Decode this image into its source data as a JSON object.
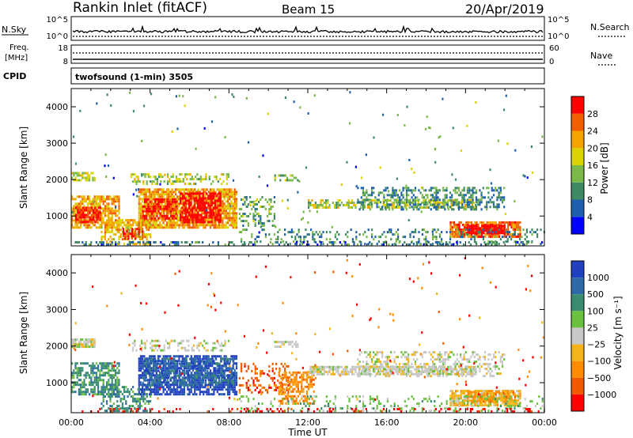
{
  "header": {
    "site": "Rankin Inlet (fitACF)",
    "beam": "Beam 15",
    "date": "20/Apr/2019"
  },
  "top_panels": {
    "nsky_label": "N.Sky",
    "nsky_top": "10^5",
    "nsky_bottom": "10^0",
    "nsearch_label": "N.Search",
    "nsearch_top": "10^5",
    "nsearch_bottom": "10^0",
    "freq_label_1": "Freq.",
    "freq_label_2": "[MHz]",
    "freq_top": "18",
    "freq_bottom": "8",
    "nave_label": "Nave",
    "nave_top": "60",
    "nave_bottom": "0",
    "cpid_label": "CPID",
    "cpid_text": "twofsound (1-min) 3505"
  },
  "colors": {
    "power_scale": [
      "#0000ff",
      "#1f5fb0",
      "#3f8a64",
      "#7ab84a",
      "#dcd200",
      "#f5a300",
      "#f06000",
      "#ff0000"
    ],
    "velocity_scale": [
      "#2040c0",
      "#2f6aa8",
      "#3a8c70",
      "#6cc040",
      "#c8c8c8",
      "#f2b418",
      "#ff8c00",
      "#f25a00",
      "#ff0000"
    ]
  },
  "chart_data": [
    {
      "type": "heatmap",
      "title": "twofsound (1-min) 3505",
      "variable": "Power",
      "xlabel": "Time UT",
      "ylabel": "Slant Range [km]",
      "x_ticks": [
        "00:00",
        "04:00",
        "08:00",
        "12:00",
        "16:00",
        "20:00",
        "00:00"
      ],
      "xlim_hours": [
        0,
        24
      ],
      "y_ticks": [
        1000,
        2000,
        3000,
        4000
      ],
      "ylim": [
        180,
        4500
      ],
      "colorbar": {
        "label": "Power [dB]",
        "ticks": [
          4,
          8,
          12,
          16,
          20,
          24,
          28
        ],
        "range": [
          0,
          32
        ]
      },
      "regions": [
        {
          "t0": 0.0,
          "t1": 2.4,
          "r0": 650,
          "r1": 1550,
          "value": 20,
          "density": 0.75
        },
        {
          "t0": 0.2,
          "t1": 1.5,
          "r0": 800,
          "r1": 1200,
          "value": 28,
          "density": 0.8
        },
        {
          "t0": 1.5,
          "t1": 4.0,
          "r0": 200,
          "r1": 900,
          "value": 18,
          "density": 0.55
        },
        {
          "t0": 2.6,
          "t1": 3.6,
          "r0": 350,
          "r1": 650,
          "value": 26,
          "density": 0.7
        },
        {
          "t0": 3.4,
          "t1": 8.4,
          "r0": 650,
          "r1": 1750,
          "value": 20,
          "density": 0.85
        },
        {
          "t0": 3.6,
          "t1": 5.3,
          "r0": 900,
          "r1": 1450,
          "value": 28,
          "density": 0.7
        },
        {
          "t0": 5.5,
          "t1": 7.6,
          "r0": 800,
          "r1": 1600,
          "value": 30,
          "density": 0.75
        },
        {
          "t0": 0.0,
          "t1": 1.2,
          "r0": 1950,
          "r1": 2150,
          "value": 14,
          "density": 0.6
        },
        {
          "t0": 3.0,
          "t1": 8.0,
          "r0": 1850,
          "r1": 2150,
          "value": 14,
          "density": 0.4
        },
        {
          "t0": 8.5,
          "t1": 10.3,
          "r0": 700,
          "r1": 1500,
          "value": 10,
          "density": 0.35
        },
        {
          "t0": 10.3,
          "t1": 11.5,
          "r0": 1950,
          "r1": 2100,
          "value": 10,
          "density": 0.5
        },
        {
          "t0": 12.0,
          "t1": 20.5,
          "r0": 1200,
          "r1": 1450,
          "value": 14,
          "density": 0.55
        },
        {
          "t0": 14.5,
          "t1": 22.0,
          "r0": 1150,
          "r1": 1800,
          "value": 8,
          "density": 0.4
        },
        {
          "t0": 19.2,
          "t1": 22.8,
          "r0": 400,
          "r1": 800,
          "value": 24,
          "density": 0.8
        },
        {
          "t0": 20.0,
          "t1": 22.0,
          "r0": 500,
          "r1": 700,
          "value": 30,
          "density": 0.85
        },
        {
          "t0": 8.5,
          "t1": 24.0,
          "r0": 200,
          "r1": 650,
          "value": 8,
          "density": 0.22
        },
        {
          "t0": 0.0,
          "t1": 24.0,
          "r0": 180,
          "r1": 280,
          "value": 6,
          "density": 0.3
        }
      ]
    },
    {
      "type": "heatmap",
      "variable": "Velocity",
      "xlabel": "Time UT",
      "ylabel": "Slant Range [km]",
      "x_ticks": [
        "00:00",
        "04:00",
        "08:00",
        "12:00",
        "16:00",
        "20:00",
        "00:00"
      ],
      "xlim_hours": [
        0,
        24
      ],
      "y_ticks": [
        1000,
        2000,
        3000,
        4000
      ],
      "ylim": [
        180,
        4500
      ],
      "colorbar": {
        "label": "Velocity [m s⁻¹]",
        "ticks": [
          "1000",
          "500",
          "100",
          "25",
          "−25",
          "−100",
          "−500",
          "−1000"
        ]
      },
      "regions": [
        {
          "t0": 0.0,
          "t1": 2.4,
          "r0": 650,
          "r1": 1550,
          "value": 2,
          "density": 0.6
        },
        {
          "t0": 1.5,
          "t1": 4.0,
          "r0": 200,
          "r1": 900,
          "value": 2,
          "density": 0.5
        },
        {
          "t0": 3.4,
          "t1": 8.4,
          "r0": 650,
          "r1": 1750,
          "value": 0,
          "density": 0.7
        },
        {
          "t0": 3.6,
          "t1": 8.2,
          "r0": 900,
          "r1": 1650,
          "value": 1,
          "density": 0.6
        },
        {
          "t0": 0.0,
          "t1": 1.2,
          "r0": 1950,
          "r1": 2150,
          "value": 4,
          "density": 0.85
        },
        {
          "t0": 3.0,
          "t1": 8.0,
          "r0": 1850,
          "r1": 2150,
          "value": 4,
          "density": 0.35
        },
        {
          "t0": 10.3,
          "t1": 11.5,
          "r0": 1950,
          "r1": 2100,
          "value": 4,
          "density": 0.6
        },
        {
          "t0": 8.5,
          "t1": 11.0,
          "r0": 700,
          "r1": 1500,
          "value": 7,
          "density": 0.3
        },
        {
          "t0": 10.5,
          "t1": 12.3,
          "r0": 400,
          "r1": 1300,
          "value": 6,
          "density": 0.55
        },
        {
          "t0": 12.0,
          "t1": 20.5,
          "r0": 1200,
          "r1": 1450,
          "value": 4,
          "density": 0.75
        },
        {
          "t0": 14.5,
          "t1": 22.0,
          "r0": 1150,
          "r1": 1800,
          "value": 4,
          "density": 0.35
        },
        {
          "t0": 19.2,
          "t1": 22.8,
          "r0": 350,
          "r1": 800,
          "value": 5,
          "density": 0.8
        },
        {
          "t0": 20.0,
          "t1": 22.5,
          "r0": 450,
          "r1": 750,
          "value": 6,
          "density": 0.55
        },
        {
          "t0": 8.5,
          "t1": 24.0,
          "r0": 200,
          "r1": 650,
          "value": 3,
          "density": 0.18
        },
        {
          "t0": 0.0,
          "t1": 24.0,
          "r0": 180,
          "r1": 280,
          "value": 8,
          "density": 0.2
        }
      ]
    }
  ]
}
